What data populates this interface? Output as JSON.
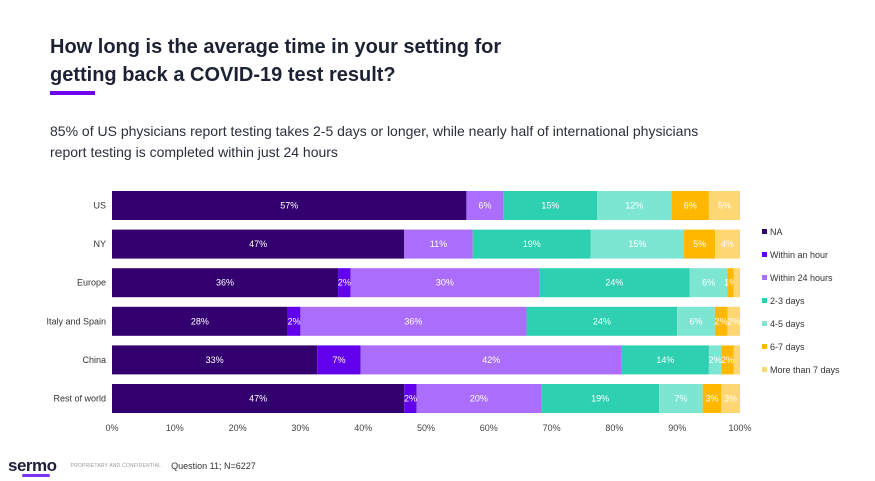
{
  "header": {
    "title_line1": "How long is the average time in your setting for",
    "title_line2": "getting back a COVID-19 test result?",
    "subtitle_line1": "85% of US physicians report testing takes 2-5 days or longer, while nearly half of international physicians",
    "subtitle_line2": "report testing is completed within just 24 hours"
  },
  "chart_data": {
    "type": "bar",
    "orientation": "horizontal",
    "stacked": true,
    "title": "How long is the average time in your setting for getting back a COVID-19 test result?",
    "xlabel": "",
    "ylabel": "",
    "xlim": [
      0,
      100
    ],
    "x_ticks": [
      "0%",
      "10%",
      "20%",
      "30%",
      "40%",
      "50%",
      "60%",
      "70%",
      "80%",
      "90%",
      "100%"
    ],
    "grid": false,
    "legend_position": "right",
    "categories": [
      "US",
      "NY",
      "Europe",
      "Italy and Spain",
      "China",
      "Rest of world"
    ],
    "series": [
      {
        "name": "NA",
        "color": "#33006f",
        "values": [
          57,
          47,
          36,
          28,
          33,
          47
        ],
        "labels": [
          "57%",
          "47%",
          "36%",
          "28%",
          "33%",
          "47%"
        ]
      },
      {
        "name": "Within an hour",
        "color": "#6200ee",
        "values": [
          0,
          0,
          2,
          2,
          7,
          2
        ],
        "labels": [
          "",
          "",
          "2%",
          "2%",
          "7%",
          "2%"
        ]
      },
      {
        "name": "Within 24 hours",
        "color": "#aa6efb",
        "values": [
          6,
          11,
          30,
          36,
          42,
          20
        ],
        "labels": [
          "6%",
          "11%",
          "30%",
          "36%",
          "42%",
          "20%"
        ]
      },
      {
        "name": "2-3 days",
        "color": "#2dd0b0",
        "values": [
          15,
          19,
          24,
          24,
          14,
          19
        ],
        "labels": [
          "15%",
          "19%",
          "24%",
          "24%",
          "14%",
          "19%"
        ]
      },
      {
        "name": "4-5 days",
        "color": "#7de6d3",
        "values": [
          12,
          15,
          6,
          6,
          2,
          7
        ],
        "labels": [
          "12%",
          "15%",
          "6%",
          "6%",
          "2%",
          "7%"
        ]
      },
      {
        "name": "6-7 days",
        "color": "#ffb700",
        "values": [
          6,
          5,
          1,
          2,
          2,
          3
        ],
        "labels": [
          "6%",
          "5%",
          "1%",
          "2%",
          "2%",
          "3%"
        ]
      },
      {
        "name": "More than 7 days",
        "color": "#ffd772",
        "values": [
          5,
          4,
          1,
          2,
          1,
          3
        ],
        "labels": [
          "5%",
          "4%",
          "",
          "2%",
          "",
          "3%"
        ]
      }
    ]
  },
  "footer": {
    "logo": "sermo",
    "confidential": "PROPRIETARY AND CONFIDENTIAL",
    "footnote": "Question 11; N=6227"
  }
}
